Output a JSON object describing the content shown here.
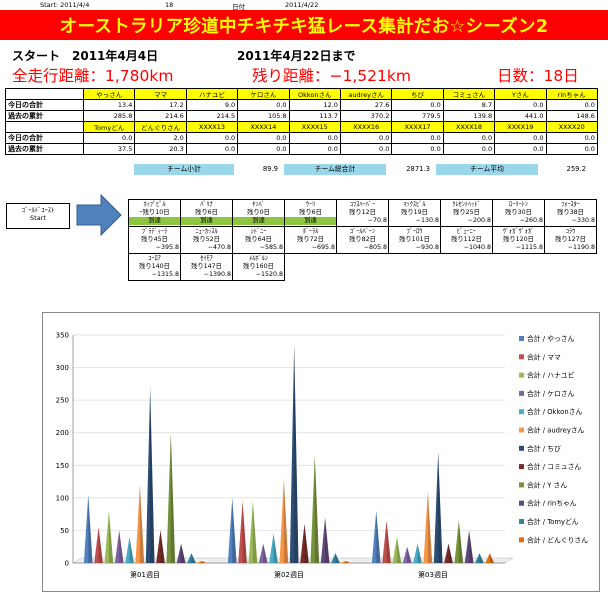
{
  "meta": {
    "start_label": "Start: 2011/4/4",
    "count": "18",
    "date_label": "日付",
    "date": "2011/4/22"
  },
  "banner": {
    "title": "オーストラリア珍道中チキチキ猛レース集計だお☆シーズン2"
  },
  "dates": {
    "start": "スタート　2011年4月4日",
    "until": "2011年4月22日まで"
  },
  "summary": {
    "total": "全走行距離：1,780km",
    "remaining": "残り距離：−1,521km",
    "days": "日数：18日"
  },
  "table1": {
    "names": [
      "やっさん",
      "ママ",
      "ハナユビ",
      "ケロさん",
      "Okkonさん",
      "audreyさん",
      "ちび",
      "コミュさん",
      "Yさん",
      "rinちゃん"
    ],
    "rows": [
      {
        "label": "今日の合計",
        "values": [
          "13.4",
          "17.2",
          "9.0",
          "0.0",
          "12.0",
          "27.6",
          "0.0",
          "8.7",
          "0.0",
          "0.0"
        ]
      },
      {
        "label": "過去の累計",
        "values": [
          "285.8",
          "214.6",
          "214.5",
          "105.8",
          "113.7",
          "370.2",
          "779.5",
          "139.8",
          "441.0",
          "148.6"
        ]
      }
    ]
  },
  "table2": {
    "names": [
      "Tomyどん",
      "どんぐりさん",
      "XXXX13",
      "XXXX14",
      "XXXX15",
      "XXXX16",
      "XXXX17",
      "XXXX18",
      "XXXX19",
      "XXXX20"
    ],
    "rows": [
      {
        "label": "今日の合計",
        "values": [
          "0.0",
          "2.0",
          "0.0",
          "0.0",
          "0.0",
          "0.0",
          "0.0",
          "0.0",
          "0.0",
          "0.0"
        ]
      },
      {
        "label": "過去の累計",
        "values": [
          "37.5",
          "20.3",
          "0.0",
          "0.0",
          "0.0",
          "0.0",
          "0.0",
          "0.0",
          "0.0",
          "0.0"
        ]
      }
    ]
  },
  "team": {
    "subtotal_label": "チーム小計",
    "subtotal": "89.9",
    "total_label": "チーム総合計",
    "total": "2871.3",
    "avg_label": "チーム平均",
    "avg": "259.2"
  },
  "start_box": {
    "line1": "ｺﾞｰﾙﾄﾞｺｰｽﾄ",
    "line2": "Start"
  },
  "route": [
    [
      {
        "name": "ﾎｯﾌﾟﾋﾟﾙ",
        "rem": "ｰ残り10日",
        "arr": "到達",
        "val": ""
      },
      {
        "name": "ﾊﾞﾘﾅ",
        "rem": "残り6日",
        "arr": "到達",
        "val": ""
      },
      {
        "name": "ﾔﾝﾊﾞ",
        "rem": "残り0日",
        "arr": "到達",
        "val": ""
      },
      {
        "name": "ｳｰﾘ",
        "rem": "残り6日",
        "arr": "到達",
        "val": ""
      },
      {
        "name": "ｺﾌｽﾊｰﾊﾞｰ",
        "rem": "残り12日",
        "arr": "",
        "val": "−70.8"
      },
      {
        "name": "ﾏｯｸｽﾋﾞﾙ",
        "rem": "残り19日",
        "arr": "",
        "val": "−130.8"
      },
      {
        "name": "ｸﾚｾﾝﾄﾍｯﾄﾞ",
        "rem": "残り25日",
        "arr": "",
        "val": "−200.8"
      },
      {
        "name": "ﾛｰﾘｰﾄﾝ",
        "rem": "残り30日",
        "arr": "",
        "val": "−260.8"
      },
      {
        "name": "ﾌｫｰｽﾀｰ",
        "rem": "残り38日",
        "arr": "",
        "val": "−330.8"
      }
    ],
    [
      {
        "name": "ﾌﾞﾗﾃﾞｨｰﾗ",
        "rem": "残り45日",
        "arr": "",
        "val": "−395.8"
      },
      {
        "name": "ﾆｭｰｶｯｽﾙ",
        "rem": "残り52日",
        "arr": "",
        "val": "−470.8"
      },
      {
        "name": "ｼﾄﾞﾆｰ",
        "rem": "残り64日",
        "arr": "",
        "val": "−585.8"
      },
      {
        "name": "ﾎﾞｰﾗﾙ",
        "rem": "残り72日",
        "arr": "",
        "val": "−695.8"
      },
      {
        "name": "ｺﾞｰﾙﾊﾞｰﾝ",
        "rem": "残り82日",
        "arr": "",
        "val": "−805.8"
      },
      {
        "name": "ﾌﾞｰﾛｳ",
        "rem": "残り101日",
        "arr": "",
        "val": "−930.8"
      },
      {
        "name": "ﾋﾞｭｰﾆｰ",
        "rem": "残り112日",
        "arr": "",
        "val": "−1040.8"
      },
      {
        "name": "ｳﾞｫｶﾞｳﾞｫｶﾞ",
        "rem": "残り120日",
        "arr": "",
        "val": "−1115.8"
      },
      {
        "name": "ｺﾗｳ",
        "rem": "残り127日",
        "arr": "",
        "val": "−1190.8"
      }
    ],
    [
      {
        "name": "ﾕｰﾛｱ",
        "rem": "残り140日",
        "arr": "",
        "val": "−1315.8"
      },
      {
        "name": "ｾｲﾓｱ",
        "rem": "残り147日",
        "arr": "",
        "val": "−1390.8"
      },
      {
        "name": "ﾒﾙﾎﾞﾙﾝ",
        "rem": "残り160日",
        "arr": "",
        "val": "−1520.8"
      }
    ]
  ],
  "chart_data": {
    "type": "bar",
    "categories": [
      "第01週目",
      "第02週目",
      "第03週目"
    ],
    "ylim": [
      0,
      350
    ],
    "yticks": [
      0,
      50,
      100,
      150,
      200,
      250,
      300,
      350
    ],
    "legend_position": "right",
    "series": [
      {
        "name": "合計 / やっさん",
        "color": "#4f81bd",
        "values": [
          105,
          100,
          80
        ]
      },
      {
        "name": "合計 / ママ",
        "color": "#c0504d",
        "values": [
          55,
          95,
          65
        ]
      },
      {
        "name": "合計 / ハナユビ",
        "color": "#9bbb59",
        "values": [
          80,
          95,
          40
        ]
      },
      {
        "name": "合計 / ケロさん",
        "color": "#8064a2",
        "values": [
          50,
          30,
          25
        ]
      },
      {
        "name": "合計 / Okkonさん",
        "color": "#4bacc6",
        "values": [
          40,
          45,
          30
        ]
      },
      {
        "name": "合計 / audreyさん",
        "color": "#f79646",
        "values": [
          120,
          130,
          110
        ]
      },
      {
        "name": "合計 / ちび",
        "color": "#2c4d75",
        "values": [
          270,
          335,
          170
        ]
      },
      {
        "name": "合計 / コミュさん",
        "color": "#772c2a",
        "values": [
          50,
          60,
          30
        ]
      },
      {
        "name": "合計 / Y さん",
        "color": "#76923c",
        "values": [
          200,
          165,
          65
        ]
      },
      {
        "name": "合計 / rinちゃん",
        "color": "#5f497a",
        "values": [
          30,
          70,
          50
        ]
      },
      {
        "name": "合計 / Tomyどん",
        "color": "#31859c",
        "values": [
          15,
          15,
          15
        ]
      },
      {
        "name": "合計 / どんぐりさん",
        "color": "#e46c0a",
        "values": [
          3,
          3,
          15
        ]
      }
    ]
  }
}
